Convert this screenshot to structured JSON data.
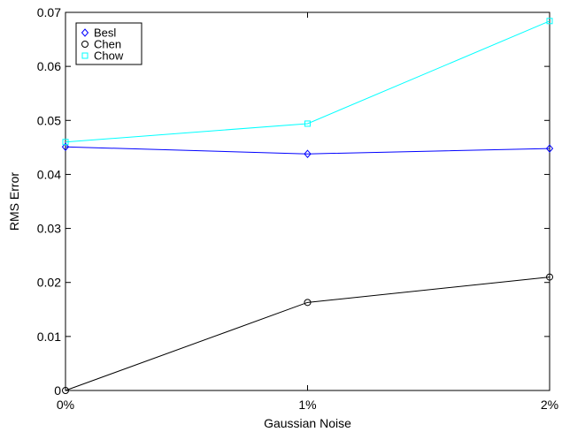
{
  "chart_data": {
    "type": "line",
    "title": "",
    "xlabel": "Gaussian Noise",
    "ylabel": "RMS Error",
    "categories": [
      "0%",
      "1%",
      "2%"
    ],
    "x": [
      0,
      1,
      2
    ],
    "xlim": [
      0,
      2
    ],
    "ylim": [
      0,
      0.07
    ],
    "yticks": [
      0,
      0.01,
      0.02,
      0.03,
      0.04,
      0.05,
      0.06,
      0.07
    ],
    "ytick_labels": [
      "0",
      "0.01",
      "0.02",
      "0.03",
      "0.04",
      "0.05",
      "0.06",
      "0.07"
    ],
    "grid": false,
    "legend_position": "top-left",
    "series": [
      {
        "name": "Besl",
        "marker": "diamond",
        "color": "#0000ff",
        "values": [
          0.0451,
          0.0438,
          0.0448
        ]
      },
      {
        "name": "Chen",
        "marker": "circle",
        "color": "#000000",
        "values": [
          0.0,
          0.0163,
          0.021
        ]
      },
      {
        "name": "Chow",
        "marker": "square",
        "color": "#00ffff",
        "values": [
          0.046,
          0.0494,
          0.0684
        ]
      }
    ]
  }
}
